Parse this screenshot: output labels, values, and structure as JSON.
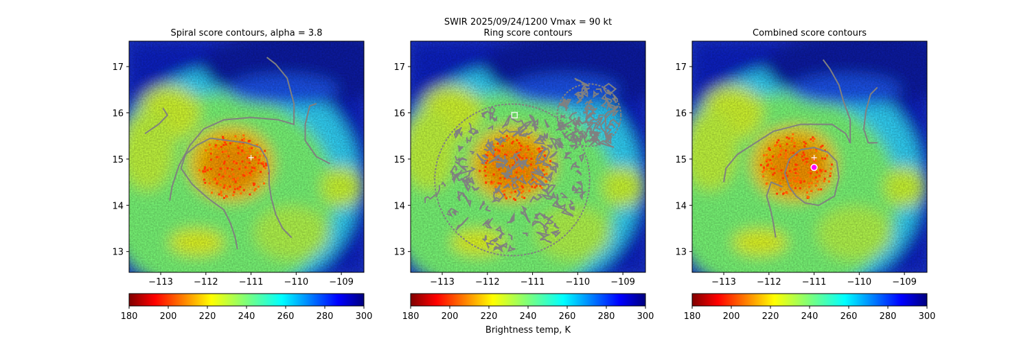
{
  "figure": {
    "suptitle_line1": "SWIR  2025/09/24/1200    Vmax = 90 kt",
    "colorbar_label": "Brightness temp, K"
  },
  "chart_data": [
    {
      "type": "heatmap",
      "title": "Spiral score contours, alpha =  3.8",
      "xlim": [
        -113.7,
        -108.5
      ],
      "ylim": [
        12.55,
        17.55
      ],
      "x_ticks": [
        -113,
        -112,
        -111,
        -110,
        -109
      ],
      "y_ticks": [
        13,
        14,
        15,
        16,
        17
      ],
      "x_tick_labels": [
        "−113",
        "−112",
        "−111",
        "−110",
        "−109"
      ],
      "y_tick_labels": [
        "13",
        "14",
        "15",
        "16",
        "17"
      ],
      "colorbar": {
        "vmin": 180,
        "vmax": 300,
        "ticks": [
          180,
          200,
          220,
          240,
          260,
          280,
          300
        ],
        "tick_labels": [
          "180",
          "200",
          "220",
          "240",
          "260",
          "280",
          "300"
        ],
        "cmap": "jet_r"
      },
      "center_marker": {
        "lon": -111.0,
        "lat": 15.03,
        "symbol": "+",
        "color": "#ffffff"
      },
      "contours": [
        [
          [
            -112.2,
            15.3
          ],
          [
            -111.9,
            15.45
          ],
          [
            -111.5,
            15.4
          ],
          [
            -111.1,
            15.35
          ],
          [
            -110.8,
            15.25
          ],
          [
            -110.65,
            15.0
          ],
          [
            -110.6,
            14.75
          ],
          [
            -110.6,
            14.45
          ],
          [
            -110.55,
            14.15
          ],
          [
            -110.45,
            13.8
          ],
          [
            -110.3,
            13.5
          ],
          [
            -110.1,
            13.3
          ]
        ],
        [
          [
            -112.2,
            15.3
          ],
          [
            -112.45,
            15.1
          ],
          [
            -112.55,
            14.8
          ],
          [
            -112.3,
            14.45
          ],
          [
            -111.95,
            14.15
          ],
          [
            -111.6,
            13.9
          ],
          [
            -111.45,
            13.6
          ],
          [
            -111.35,
            13.3
          ],
          [
            -111.3,
            13.05
          ]
        ],
        [
          [
            -112.8,
            14.1
          ],
          [
            -112.75,
            14.4
          ],
          [
            -112.6,
            14.85
          ],
          [
            -112.35,
            15.3
          ],
          [
            -112.05,
            15.65
          ],
          [
            -111.6,
            15.85
          ],
          [
            -111.0,
            15.9
          ],
          [
            -110.4,
            15.85
          ],
          [
            -110.05,
            15.75
          ],
          [
            -110.05,
            16.2
          ],
          [
            -110.2,
            16.75
          ],
          [
            -110.45,
            17.05
          ],
          [
            -110.65,
            17.2
          ]
        ],
        [
          [
            -113.35,
            15.55
          ],
          [
            -113.05,
            15.75
          ],
          [
            -112.85,
            15.95
          ],
          [
            -112.95,
            16.1
          ]
        ],
        [
          [
            -109.25,
            14.9
          ],
          [
            -109.55,
            15.05
          ],
          [
            -109.8,
            15.4
          ],
          [
            -109.8,
            15.75
          ],
          [
            -109.7,
            16.15
          ],
          [
            -109.55,
            16.2
          ]
        ]
      ]
    },
    {
      "type": "heatmap",
      "title": "Ring score contours",
      "xlim": [
        -113.7,
        -108.5
      ],
      "ylim": [
        12.55,
        17.55
      ],
      "x_ticks": [
        -113,
        -112,
        -111,
        -110,
        -109
      ],
      "y_ticks": [
        13,
        14,
        15,
        16,
        17
      ],
      "x_tick_labels": [
        "−113",
        "−112",
        "−111",
        "−110",
        "−109"
      ],
      "y_tick_labels": [
        "13",
        "14",
        "15",
        "16",
        "17"
      ],
      "colorbar": {
        "vmin": 180,
        "vmax": 300,
        "ticks": [
          180,
          200,
          220,
          240,
          260,
          280,
          300
        ],
        "tick_labels": [
          "180",
          "200",
          "220",
          "240",
          "260",
          "280",
          "300"
        ],
        "cmap": "jet_r"
      },
      "center_marker": {
        "lon": -111.4,
        "lat": 15.95,
        "symbol": "square",
        "color": "#ffffff"
      },
      "ring_region": {
        "center": [
          -111.45,
          14.55
        ],
        "radius": 1.75
      },
      "ring_region_2": {
        "center": [
          -109.75,
          15.95
        ],
        "radius": 0.72
      }
    },
    {
      "type": "heatmap",
      "title": "Combined score contours",
      "xlim": [
        -113.7,
        -108.5
      ],
      "ylim": [
        12.55,
        17.55
      ],
      "x_ticks": [
        -113,
        -112,
        -111,
        -110,
        -109
      ],
      "y_ticks": [
        13,
        14,
        15,
        16,
        17
      ],
      "x_tick_labels": [
        "−113",
        "−112",
        "−111",
        "−110",
        "−109"
      ],
      "y_tick_labels": [
        "13",
        "14",
        "15",
        "16",
        "17"
      ],
      "colorbar": {
        "vmin": 180,
        "vmax": 300,
        "ticks": [
          180,
          200,
          220,
          240,
          260,
          280,
          300
        ],
        "tick_labels": [
          "180",
          "200",
          "220",
          "240",
          "260",
          "280",
          "300"
        ],
        "cmap": "jet_r"
      },
      "center_marker": {
        "lon": -111.0,
        "lat": 15.03,
        "symbol": "+",
        "color": "#ffffff"
      },
      "best_center": {
        "lon": -111.0,
        "lat": 14.82,
        "color": "#ff00ff"
      },
      "contours": [
        [
          [
            -111.3,
            15.2
          ],
          [
            -111.0,
            15.25
          ],
          [
            -110.7,
            15.15
          ],
          [
            -110.5,
            14.95
          ],
          [
            -110.45,
            14.6
          ],
          [
            -110.55,
            14.2
          ],
          [
            -110.9,
            14.0
          ],
          [
            -111.2,
            14.05
          ],
          [
            -111.4,
            14.2
          ],
          [
            -111.55,
            14.4
          ],
          [
            -111.65,
            14.7
          ],
          [
            -111.55,
            15.0
          ],
          [
            -111.3,
            15.2
          ]
        ],
        [
          [
            -111.7,
            14.4
          ],
          [
            -111.95,
            14.5
          ],
          [
            -112.05,
            14.2
          ],
          [
            -111.95,
            13.85
          ],
          [
            -111.9,
            13.6
          ],
          [
            -111.85,
            13.3
          ]
        ],
        [
          [
            -113.0,
            14.5
          ],
          [
            -112.95,
            14.8
          ],
          [
            -112.7,
            15.1
          ],
          [
            -112.3,
            15.35
          ],
          [
            -111.9,
            15.6
          ],
          [
            -111.3,
            15.75
          ],
          [
            -110.6,
            15.75
          ],
          [
            -110.3,
            15.55
          ],
          [
            -110.2,
            15.35
          ],
          [
            -110.2,
            15.85
          ],
          [
            -110.35,
            16.25
          ],
          [
            -110.45,
            16.6
          ],
          [
            -110.65,
            16.95
          ],
          [
            -110.8,
            17.15
          ]
        ],
        [
          [
            -109.6,
            16.55
          ],
          [
            -109.75,
            16.4
          ],
          [
            -109.85,
            16.05
          ],
          [
            -109.9,
            15.65
          ],
          [
            -109.8,
            15.35
          ],
          [
            -109.6,
            15.35
          ]
        ]
      ]
    }
  ]
}
